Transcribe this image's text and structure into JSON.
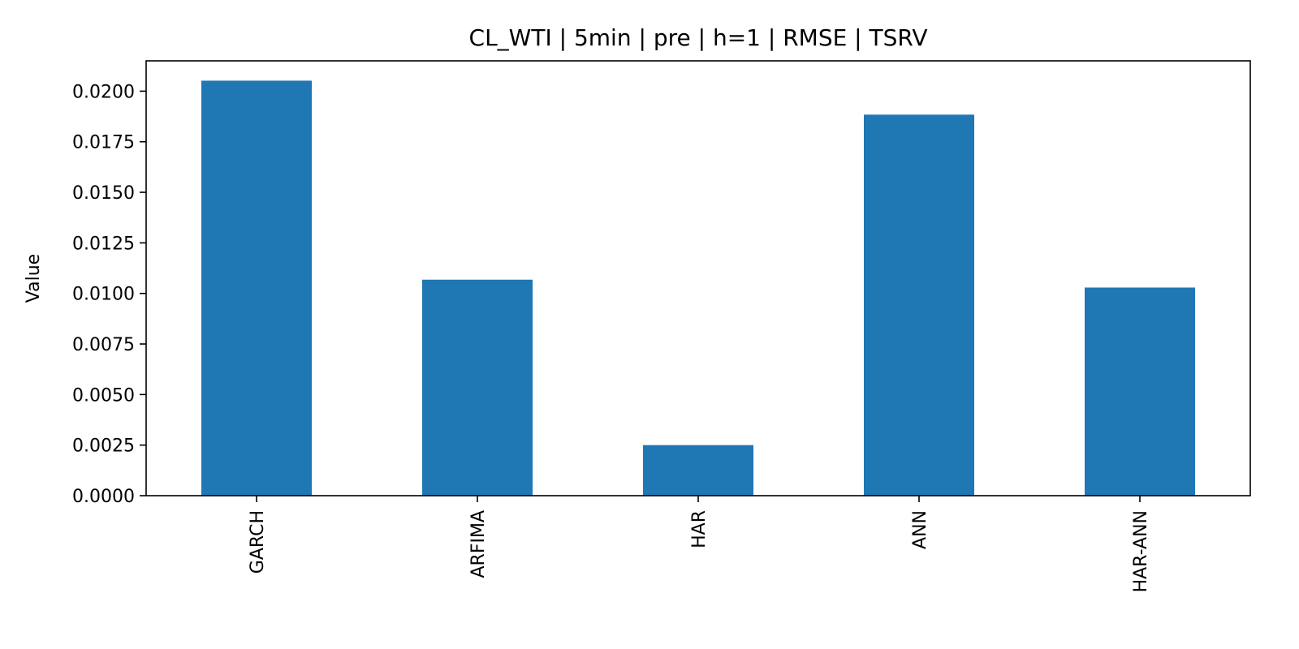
{
  "chart_data": {
    "type": "bar",
    "title": "CL_WTI | 5min | pre | h=1 | RMSE | TSRV",
    "xlabel": "",
    "ylabel": "Value",
    "categories": [
      "GARCH",
      "ARFIMA",
      "HAR",
      "ANN",
      "HAR-ANN"
    ],
    "values": [
      0.02052,
      0.01068,
      0.0025,
      0.01884,
      0.01029
    ],
    "ylim": [
      0,
      0.0215
    ],
    "yticks": [
      "0.0000",
      "0.0025",
      "0.0050",
      "0.0075",
      "0.0100",
      "0.0125",
      "0.0150",
      "0.0175",
      "0.0200"
    ],
    "bar_color": "#1f77b4",
    "grid": false,
    "legend": "none"
  }
}
